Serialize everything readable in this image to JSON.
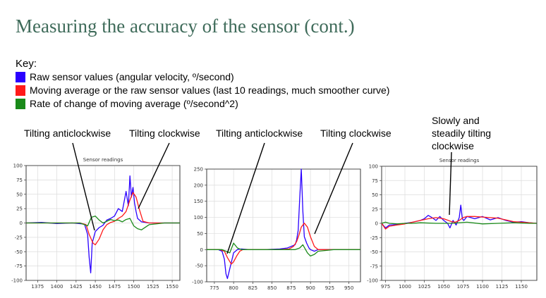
{
  "slide": {
    "title": "Measuring the accuracy of the sensor (cont.)"
  },
  "key": {
    "heading": "Key:",
    "items": [
      {
        "color": "#2a00ff",
        "label": "Raw sensor values (angular velocity, º/second)"
      },
      {
        "color": "#ff1a1a",
        "label": "Moving average or the raw sensor values (last 10 readings, much smoother curve)"
      },
      {
        "color": "#1a8a1a",
        "label": "Rate of change of moving average (º/second^2)"
      }
    ]
  },
  "annotations": [
    "Tilting anticlockwise",
    "Tilting clockwise",
    "Tilting anticlockwise",
    "Tilting clockwise",
    "Slowly and steadily tilting clockwise"
  ],
  "chart_data": [
    {
      "type": "line",
      "title": "Sensor readings",
      "xlim": [
        1360,
        1560
      ],
      "ylim": [
        -100,
        100
      ],
      "xticks": [
        "1375",
        "1400",
        "1425",
        "1450",
        "1475",
        "1500",
        "1525",
        "1550"
      ],
      "yticks": [
        "100",
        "75",
        "50",
        "25",
        "0",
        "-25",
        "-50",
        "-75",
        "-100"
      ],
      "grid": true,
      "series": [
        {
          "color": "#2a00ff",
          "x": [
            1360,
            1380,
            1400,
            1420,
            1436,
            1440,
            1442,
            1444,
            1446,
            1450,
            1455,
            1460,
            1465,
            1470,
            1475,
            1480,
            1485,
            1490,
            1493,
            1495,
            1497,
            1499,
            1501,
            1503,
            1505,
            1510,
            1520,
            1540,
            1560
          ],
          "y": [
            0,
            1,
            -1,
            0,
            -2,
            -20,
            -60,
            -87,
            -35,
            -15,
            -8,
            -4,
            5,
            8,
            12,
            25,
            20,
            55,
            30,
            82,
            45,
            62,
            35,
            20,
            8,
            2,
            0,
            0,
            0
          ]
        },
        {
          "color": "#ff1a1a",
          "x": [
            1360,
            1400,
            1430,
            1438,
            1442,
            1447,
            1450,
            1455,
            1460,
            1465,
            1470,
            1475,
            1480,
            1485,
            1490,
            1495,
            1499,
            1503,
            1507,
            1512,
            1520,
            1540,
            1560
          ],
          "y": [
            0,
            0,
            0,
            -3,
            -20,
            -35,
            -38,
            -28,
            -12,
            -3,
            1,
            3,
            8,
            12,
            20,
            40,
            53,
            45,
            25,
            3,
            0,
            0,
            0
          ]
        },
        {
          "color": "#1a8a1a",
          "x": [
            1360,
            1400,
            1430,
            1440,
            1445,
            1450,
            1455,
            1460,
            1465,
            1470,
            1475,
            1480,
            1485,
            1490,
            1495,
            1500,
            1505,
            1510,
            1520,
            1540,
            1560
          ],
          "y": [
            0,
            0,
            0,
            -5,
            10,
            12,
            5,
            0,
            3,
            6,
            4,
            5,
            2,
            6,
            8,
            -5,
            -10,
            -12,
            -3,
            0,
            0
          ]
        }
      ]
    },
    {
      "type": "line",
      "title": "",
      "xlim": [
        765,
        965
      ],
      "ylim": [
        -100,
        250
      ],
      "xticks": [
        "775",
        "800",
        "825",
        "850",
        "875",
        "900",
        "925",
        "950"
      ],
      "yticks": [
        "250",
        "200",
        "150",
        "100",
        "50",
        "0",
        "-50",
        "-100"
      ],
      "grid": true,
      "series": [
        {
          "color": "#2a00ff",
          "x": [
            765,
            780,
            785,
            788,
            790,
            792,
            795,
            798,
            800,
            805,
            810,
            820,
            840,
            860,
            870,
            875,
            880,
            882,
            884,
            886,
            888,
            890,
            892,
            895,
            898,
            900,
            905,
            910,
            930,
            965
          ],
          "y": [
            0,
            0,
            -5,
            -30,
            -75,
            -90,
            -60,
            -30,
            -10,
            0,
            2,
            0,
            0,
            2,
            5,
            10,
            15,
            30,
            60,
            160,
            250,
            120,
            40,
            20,
            5,
            0,
            -5,
            0,
            0,
            0
          ]
        },
        {
          "color": "#ff1a1a",
          "x": [
            765,
            782,
            788,
            792,
            797,
            800,
            804,
            808,
            812,
            820,
            840,
            860,
            872,
            878,
            882,
            885,
            888,
            892,
            896,
            900,
            905,
            910,
            930,
            965
          ],
          "y": [
            0,
            0,
            -5,
            -25,
            -45,
            -38,
            -20,
            -5,
            0,
            0,
            0,
            0,
            2,
            10,
            25,
            45,
            70,
            82,
            70,
            40,
            10,
            0,
            0,
            0
          ]
        },
        {
          "color": "#1a8a1a",
          "x": [
            765,
            785,
            790,
            795,
            800,
            805,
            810,
            820,
            860,
            880,
            886,
            890,
            896,
            900,
            905,
            910,
            930,
            965
          ],
          "y": [
            0,
            0,
            -5,
            -10,
            20,
            5,
            0,
            0,
            0,
            0,
            5,
            15,
            -10,
            -20,
            -15,
            -5,
            0,
            0
          ]
        }
      ]
    },
    {
      "type": "line",
      "title": "Sensor readings",
      "xlim": [
        970,
        1170
      ],
      "ylim": [
        -100,
        100
      ],
      "xticks": [
        "975",
        "1000",
        "1025",
        "1050",
        "1075",
        "1100",
        "1125",
        "1150"
      ],
      "yticks": [
        "100",
        "75",
        "50",
        "25",
        "0",
        "-25",
        "-50",
        "-75",
        "-100"
      ],
      "grid": true,
      "series": [
        {
          "color": "#2a00ff",
          "x": [
            970,
            975,
            980,
            990,
            1000,
            1010,
            1020,
            1025,
            1030,
            1035,
            1040,
            1045,
            1050,
            1055,
            1058,
            1062,
            1066,
            1070,
            1072,
            1074,
            1076,
            1080,
            1090,
            1100,
            1110,
            1120,
            1130,
            1140,
            1150,
            1160,
            1170
          ],
          "y": [
            0,
            -8,
            -3,
            -2,
            0,
            2,
            5,
            8,
            14,
            10,
            5,
            12,
            5,
            0,
            -8,
            5,
            -3,
            10,
            32,
            8,
            5,
            12,
            8,
            12,
            6,
            10,
            5,
            2,
            3,
            1,
            0
          ]
        },
        {
          "color": "#ff1a1a",
          "x": [
            970,
            975,
            980,
            990,
            1000,
            1010,
            1020,
            1030,
            1040,
            1050,
            1060,
            1065,
            1070,
            1075,
            1080,
            1090,
            1100,
            1110,
            1120,
            1130,
            1140,
            1150,
            1160,
            1170
          ],
          "y": [
            0,
            -10,
            -5,
            -3,
            -1,
            2,
            5,
            8,
            10,
            8,
            3,
            2,
            5,
            10,
            12,
            12,
            11,
            10,
            9,
            6,
            3,
            2,
            1,
            0
          ]
        },
        {
          "color": "#1a8a1a",
          "x": [
            970,
            975,
            980,
            990,
            1000,
            1010,
            1020,
            1040,
            1060,
            1080,
            1100,
            1120,
            1140,
            1160,
            1170
          ],
          "y": [
            0,
            2,
            0,
            -1,
            0,
            0,
            1,
            0,
            0,
            2,
            -1,
            0,
            1,
            0,
            0
          ]
        }
      ]
    }
  ]
}
